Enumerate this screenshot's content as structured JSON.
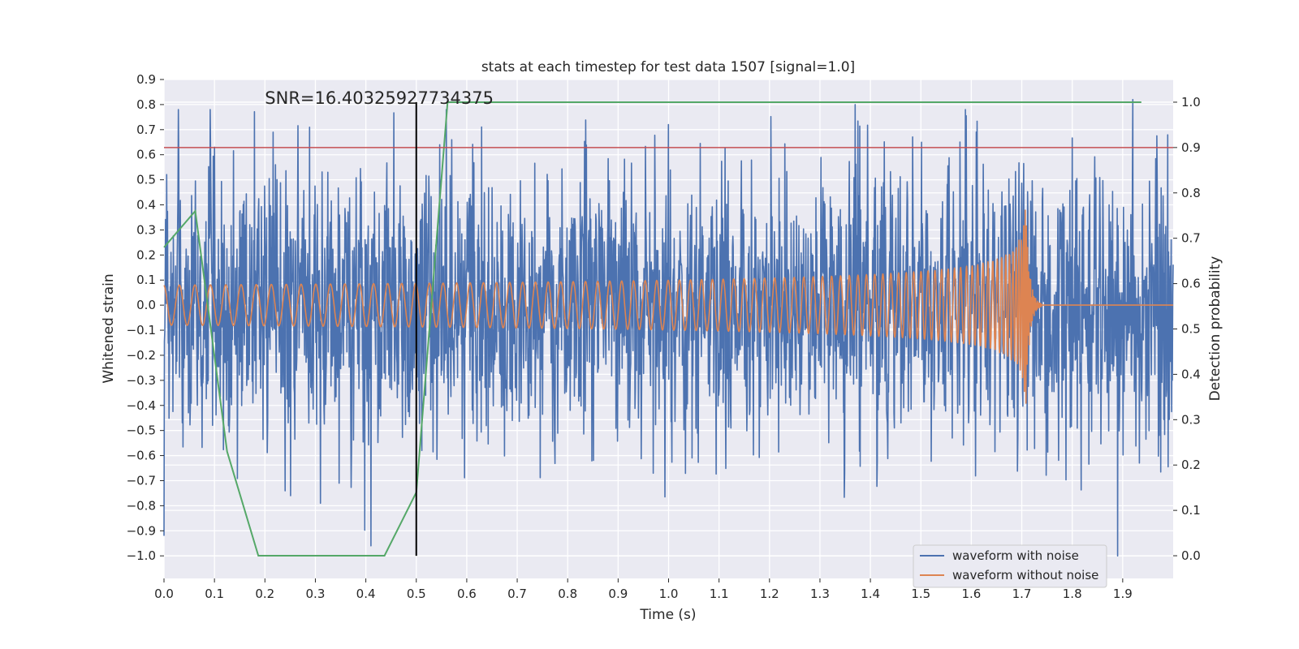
{
  "chart_data": {
    "type": "line",
    "title": "stats at each timestep for test data 1507 [signal=1.0]",
    "xlabel": "Time (s)",
    "ylabel_left": "Whitened strain",
    "ylabel_right": "Detection probability",
    "xlim": [
      0.0,
      2.0
    ],
    "ylim_left": [
      -1.09,
      0.9
    ],
    "ylim_right": [
      -0.05,
      1.05
    ],
    "x_ticks": [
      "0.0",
      "0.1",
      "0.2",
      "0.3",
      "0.4",
      "0.5",
      "0.6",
      "0.7",
      "0.8",
      "0.9",
      "1.0",
      "1.1",
      "1.2",
      "1.3",
      "1.4",
      "1.5",
      "1.6",
      "1.7",
      "1.8",
      "1.9"
    ],
    "y_ticks_left": [
      "0.9",
      "0.8",
      "0.7",
      "0.6",
      "0.5",
      "0.4",
      "0.3",
      "0.2",
      "0.1",
      "0.0",
      "−0.1",
      "−0.2",
      "−0.3",
      "−0.4",
      "−0.5",
      "−0.6",
      "−0.7",
      "−0.8",
      "−0.9",
      "−1.0"
    ],
    "y_ticks_right": [
      "1.0",
      "0.9",
      "0.8",
      "0.7",
      "0.6",
      "0.5",
      "0.4",
      "0.3",
      "0.2",
      "0.1",
      "0.0"
    ],
    "grid": true,
    "legend_position": "lower-right",
    "series": [
      {
        "name": "waveform with noise",
        "axis": "left",
        "color": "#4c72b0",
        "kind": "noisy-whitened-strain",
        "x_range": [
          0.0,
          2.0
        ],
        "approx_peak_values": [
          {
            "x": 0.0,
            "y": -0.92
          },
          {
            "x": 0.1,
            "y": 0.63
          },
          {
            "x": 0.31,
            "y": -0.79
          },
          {
            "x": 0.41,
            "y": -0.96
          },
          {
            "x": 0.57,
            "y": 0.66
          },
          {
            "x": 1.37,
            "y": 0.8
          },
          {
            "x": 1.89,
            "y": -1.0
          },
          {
            "x": 1.92,
            "y": 0.82
          }
        ]
      },
      {
        "name": "waveform without noise",
        "axis": "left",
        "color": "#dd8452",
        "kind": "chirp",
        "x_range": [
          0.0,
          2.0
        ],
        "merger_time": 1.71,
        "start_amplitude": 0.08,
        "peak_amplitude": 0.48,
        "peak_negative": -0.53,
        "post_merger_value": 0.0
      },
      {
        "name": "Detection probability",
        "axis": "right",
        "color": "#55a868",
        "x": [
          0.0,
          0.062,
          0.125,
          0.187,
          0.25,
          0.312,
          0.375,
          0.437,
          0.5,
          0.562,
          0.625,
          0.687,
          0.75,
          0.812,
          0.875,
          0.937,
          1.0,
          1.062,
          1.125,
          1.187,
          1.25,
          1.312,
          1.375,
          1.437,
          1.5,
          1.562,
          1.625,
          1.687,
          1.75,
          1.812,
          1.875,
          1.937
        ],
        "y": [
          0.68,
          0.76,
          0.23,
          0.0,
          0.0,
          0.0,
          0.0,
          0.0,
          0.14,
          1.0,
          1.0,
          1.0,
          1.0,
          1.0,
          1.0,
          1.0,
          1.0,
          1.0,
          1.0,
          1.0,
          1.0,
          1.0,
          1.0,
          1.0,
          1.0,
          1.0,
          1.0,
          1.0,
          1.0,
          1.0,
          1.0,
          1.0
        ]
      }
    ],
    "threshold": {
      "axis": "right",
      "value": 0.9,
      "color": "#c44e52"
    },
    "vline": {
      "x": 0.5,
      "y_from": -1.0,
      "y_to": 0.81,
      "color": "#000000"
    },
    "annotation": {
      "text": "SNR=16.40325927734375",
      "x": 0.2,
      "y": 0.8
    }
  }
}
